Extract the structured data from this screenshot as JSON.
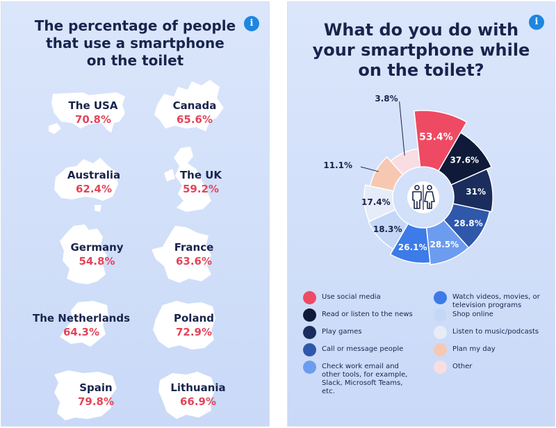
{
  "left": {
    "title_lines": [
      "The percentage of people",
      "that use a smartphone",
      "on the toilet"
    ],
    "info_icon": "i",
    "countries": [
      {
        "name": "The USA",
        "value": "70.8%"
      },
      {
        "name": "Canada",
        "value": "65.6%"
      },
      {
        "name": "Australia",
        "value": "62.4%"
      },
      {
        "name": "The UK",
        "value": "59.2%"
      },
      {
        "name": "Germany",
        "value": "54.8%"
      },
      {
        "name": "France",
        "value": "63.6%"
      },
      {
        "name": "The Netherlands",
        "value": "64.3%"
      },
      {
        "name": "Poland",
        "value": "72.9%"
      },
      {
        "name": "Spain",
        "value": "79.8%"
      },
      {
        "name": "Lithuania",
        "value": "66.9%"
      }
    ]
  },
  "right": {
    "title_lines": [
      "What do you do with",
      "your smartphone while",
      "on the toilet?"
    ],
    "info_icon": "i",
    "center_icon": "restroom-icon"
  },
  "chart_data": {
    "type": "pie",
    "variant": "donut",
    "series": [
      {
        "name": "Use social media",
        "value": 53.4,
        "label": "53.4%",
        "color": "#ef4a63"
      },
      {
        "name": "Read or listen to the news",
        "value": 37.6,
        "label": "37.6%",
        "color": "#0f1a38"
      },
      {
        "name": "Play games",
        "value": 31,
        "label": "31%",
        "color": "#1a2d5c"
      },
      {
        "name": "Call or message people",
        "value": 28.8,
        "label": "28.8%",
        "color": "#2f58ab"
      },
      {
        "name": "Check work email and other tools, for example, Slack, Microsoft Teams, etc.",
        "value": 28.5,
        "label": "28.5%",
        "color": "#6c9cef"
      },
      {
        "name": "Watch videos, movies, or television programs",
        "value": 26.1,
        "label": "26.1%",
        "color": "#3c7be8"
      },
      {
        "name": "Shop online",
        "value": 18.3,
        "label": "18.3%",
        "color": "#c4d7f6"
      },
      {
        "name": "Listen to music/podcasts",
        "value": 17.4,
        "label": "17.4%",
        "color": "#e6ecf8"
      },
      {
        "name": "Plan my day",
        "value": 11.1,
        "label": "11.1%",
        "color": "#f6c8b2"
      },
      {
        "name": "Other",
        "value": 3.8,
        "label": "3.8%",
        "color": "#f8dde2"
      }
    ],
    "legend_order": [
      0,
      5,
      1,
      6,
      2,
      7,
      3,
      8,
      4,
      9
    ],
    "legend_placement": "bottom"
  }
}
